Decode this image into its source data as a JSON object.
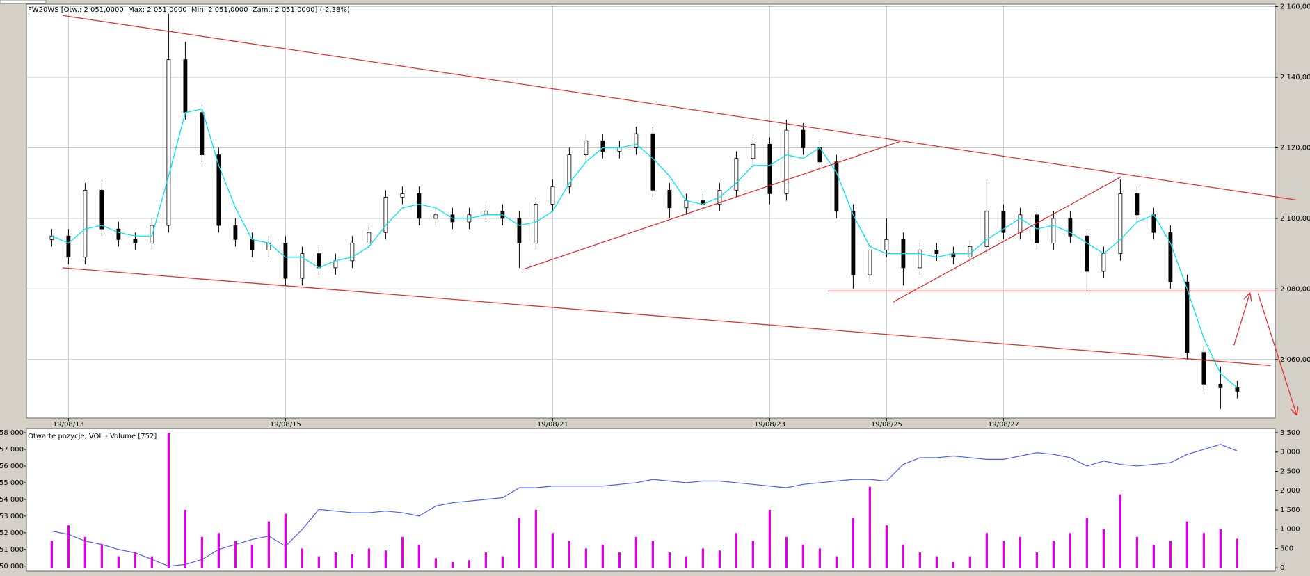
{
  "chart_data": [
    {
      "type": "candlestick",
      "title": "FW20WS [Otw.: 2 051,0000  Max: 2 051,0000  Min: 2 051,0000  Zam.: 2 051,0000] (-2,38%)",
      "categories": [
        null,
        "19/08/13",
        null,
        null,
        null,
        null,
        null,
        null,
        null,
        null,
        null,
        null,
        null,
        null,
        "19/08/15",
        null,
        null,
        null,
        null,
        null,
        null,
        null,
        null,
        null,
        null,
        null,
        null,
        null,
        null,
        null,
        "19/08/21",
        null,
        null,
        null,
        null,
        null,
        null,
        null,
        null,
        null,
        null,
        null,
        null,
        "19/08/23",
        null,
        null,
        null,
        null,
        null,
        null,
        "19/08/25",
        null,
        null,
        null,
        null,
        null,
        null,
        "19/08/27",
        null,
        null,
        null,
        null,
        null,
        null,
        null,
        null,
        null,
        null,
        null,
        null,
        null,
        null
      ],
      "open": [
        2094,
        2095,
        2089,
        2108,
        2097,
        2094,
        2093,
        2098,
        2145,
        2130,
        2118,
        2098,
        2094,
        2091,
        2093,
        2083,
        2090,
        2086,
        2088,
        2093,
        2096,
        2106,
        2107,
        2100,
        2101,
        2099,
        2101,
        2102,
        2100,
        2093,
        2104,
        2109,
        2118,
        2122,
        2119,
        2120,
        2124,
        2108,
        2103,
        2105,
        2104,
        2108,
        2117,
        2121,
        2107,
        2125,
        2120,
        2116,
        2102,
        2084,
        2091,
        2094,
        2086,
        2091,
        2090,
        2089,
        2092,
        2102,
        2096,
        2101,
        2093,
        2100,
        2095,
        2085,
        2090,
        2107,
        2101,
        2096,
        2082,
        2062,
        2053,
        2052
      ],
      "high": [
        2097,
        2097,
        2110,
        2110,
        2099,
        2096,
        2100,
        2158,
        2150,
        2132,
        2120,
        2100,
        2096,
        2095,
        2095,
        2092,
        2092,
        2090,
        2095,
        2098,
        2108,
        2109,
        2109,
        2103,
        2103,
        2103,
        2104,
        2104,
        2102,
        2106,
        2111,
        2120,
        2124,
        2124,
        2122,
        2126,
        2126,
        2110,
        2107,
        2107,
        2110,
        2119,
        2123,
        2123,
        2128,
        2127,
        2122,
        2118,
        2104,
        2093,
        2100,
        2096,
        2093,
        2093,
        2092,
        2094,
        2111,
        2104,
        2103,
        2103,
        2102,
        2102,
        2097,
        2092,
        2111,
        2109,
        2103,
        2098,
        2084,
        2064,
        2058,
        2054
      ],
      "low": [
        2092,
        2087,
        2087,
        2095,
        2092,
        2091,
        2091,
        2096,
        2128,
        2116,
        2096,
        2092,
        2089,
        2089,
        2081,
        2081,
        2084,
        2084,
        2086,
        2091,
        2094,
        2104,
        2098,
        2098,
        2097,
        2097,
        2099,
        2098,
        2086,
        2091,
        2102,
        2107,
        2116,
        2117,
        2117,
        2118,
        2106,
        2100,
        2101,
        2102,
        2102,
        2106,
        2115,
        2104,
        2105,
        2118,
        2114,
        2100,
        2080,
        2082,
        2089,
        2081,
        2084,
        2088,
        2087,
        2087,
        2090,
        2094,
        2094,
        2091,
        2091,
        2093,
        2079,
        2083,
        2088,
        2099,
        2094,
        2080,
        2060,
        2051,
        2046,
        2049
      ],
      "close": [
        2095,
        2089,
        2108,
        2097,
        2094,
        2093,
        2098,
        2145,
        2130,
        2118,
        2098,
        2094,
        2091,
        2093,
        2083,
        2090,
        2086,
        2088,
        2093,
        2096,
        2106,
        2107,
        2100,
        2101,
        2099,
        2101,
        2102,
        2100,
        2093,
        2104,
        2109,
        2118,
        2122,
        2119,
        2120,
        2124,
        2108,
        2103,
        2105,
        2104,
        2108,
        2117,
        2121,
        2107,
        2125,
        2120,
        2116,
        2102,
        2084,
        2091,
        2094,
        2086,
        2091,
        2090,
        2089,
        2092,
        2102,
        2096,
        2101,
        2093,
        2100,
        2095,
        2085,
        2090,
        2107,
        2101,
        2096,
        2082,
        2062,
        2053,
        2052,
        2051
      ],
      "up_color": "#ffffff",
      "down_color": "#000000",
      "ma": {
        "color": "#00e5ee",
        "values": [
          2095,
          2093,
          2097,
          2098,
          2096,
          2095,
          2095,
          2112,
          2130,
          2131,
          2115,
          2103,
          2094,
          2093,
          2089,
          2089,
          2086,
          2088,
          2089,
          2092,
          2098,
          2103,
          2104,
          2103,
          2100,
          2100,
          2101,
          2101,
          2098,
          2099,
          2102,
          2110,
          2116,
          2120,
          2120,
          2121,
          2117,
          2112,
          2105,
          2104,
          2106,
          2110,
          2115,
          2115,
          2118,
          2117,
          2120,
          2113,
          2101,
          2092,
          2090,
          2090,
          2090,
          2089,
          2090,
          2090,
          2094,
          2097,
          2100,
          2097,
          2098,
          2096,
          2093,
          2090,
          2094,
          2099,
          2101,
          2093,
          2080,
          2066,
          2056,
          2052
        ]
      },
      "line_color": "#e03030",
      "lines": [
        {
          "x": [
            0.65,
            74.55
          ],
          "y": [
            2157.5,
            2105.2
          ]
        },
        {
          "x": [
            0.65,
            73.0
          ],
          "y": [
            2086.0,
            2058.3
          ]
        },
        {
          "x": [
            28.25,
            50.8
          ],
          "y": [
            2085.6,
            2121.8
          ]
        },
        {
          "x": [
            46.5,
            73.25
          ],
          "y": [
            2079.4,
            2079.4
          ]
        },
        {
          "x": [
            50.4,
            64.05
          ],
          "y": [
            2076.3,
            2111.8
          ]
        }
      ],
      "arrows": [
        {
          "x": [
            70.8,
            71.75
          ],
          "y": [
            2064.0,
            2078.7
          ]
        },
        {
          "x": [
            72.25,
            74.55
          ],
          "y": [
            2078.7,
            2044.4
          ]
        }
      ],
      "ylim": [
        2043.4,
        2160.7
      ],
      "yticks": [
        {
          "value": 2060,
          "label": "2 060,0000"
        },
        {
          "value": 2080,
          "label": "2 080,0000"
        },
        {
          "value": 2100,
          "label": "2 100,0000"
        },
        {
          "value": 2120,
          "label": "2 120,0000"
        },
        {
          "value": 2140,
          "label": "2 140,0000"
        },
        {
          "value": 2160,
          "label": "2 160,0000"
        }
      ],
      "grid": true
    },
    {
      "type": "combo",
      "title": "Otwarte pozycje, VOL - Volume [752]",
      "series": [
        {
          "type": "line",
          "color": "#4b5cf2",
          "values": [
            52100,
            51900,
            51500,
            51300,
            51000,
            50800,
            50400,
            50000,
            50100,
            50400,
            51000,
            51300,
            51600,
            51800,
            51200,
            52200,
            53400,
            53300,
            53200,
            53200,
            53300,
            53200,
            53000,
            53600,
            53800,
            53900,
            54000,
            54100,
            54700,
            54700,
            54800,
            54800,
            54800,
            54800,
            54900,
            55000,
            55200,
            55100,
            55000,
            55100,
            55100,
            55000,
            54900,
            54800,
            54700,
            54900,
            55000,
            55100,
            55200,
            55200,
            55100,
            56100,
            56500,
            56500,
            56600,
            56500,
            56400,
            56400,
            56600,
            56800,
            56700,
            56500,
            56000,
            56300,
            56100,
            56000,
            56100,
            56200,
            56700,
            57000,
            57300,
            56900
          ]
        },
        {
          "type": "bar",
          "axis": "y2",
          "color": "#e000e0",
          "values": [
            700,
            1100,
            800,
            600,
            300,
            400,
            300,
            3500,
            1500,
            800,
            900,
            700,
            600,
            1200,
            1400,
            500,
            300,
            400,
            350,
            500,
            450,
            800,
            600,
            250,
            150,
            200,
            400,
            300,
            1300,
            1500,
            900,
            700,
            500,
            600,
            400,
            800,
            700,
            400,
            300,
            500,
            450,
            900,
            700,
            1500,
            800,
            600,
            500,
            300,
            1300,
            2100,
            1100,
            600,
            400,
            300,
            150,
            300,
            900,
            700,
            800,
            400,
            700,
            900,
            1300,
            1000,
            1900,
            800,
            600,
            700,
            1200,
            900,
            1000,
            752
          ]
        }
      ],
      "ylim": [
        49700,
        58250
      ],
      "yticks": [
        {
          "value": 50000,
          "label": "50 000"
        },
        {
          "value": 51000,
          "label": "51 000"
        },
        {
          "value": 52000,
          "label": "52 000"
        },
        {
          "value": 53000,
          "label": "53 000"
        },
        {
          "value": 54000,
          "label": "54 000"
        },
        {
          "value": 55000,
          "label": "55 000"
        },
        {
          "value": 56000,
          "label": "56 000"
        },
        {
          "value": 57000,
          "label": "57 000"
        },
        {
          "value": 58000,
          "label": "58 000"
        }
      ],
      "y2lim": [
        -86,
        3608
      ],
      "y2ticks": [
        0,
        500,
        {
          "value": 1000,
          "label": "1 000"
        },
        {
          "value": 1500,
          "label": "1 500"
        },
        {
          "value": 2000,
          "label": "2 000"
        },
        {
          "value": 2500,
          "label": "2 500"
        },
        {
          "value": 3000,
          "label": "3 000"
        },
        {
          "value": 3500,
          "label": "3 500"
        }
      ]
    }
  ]
}
